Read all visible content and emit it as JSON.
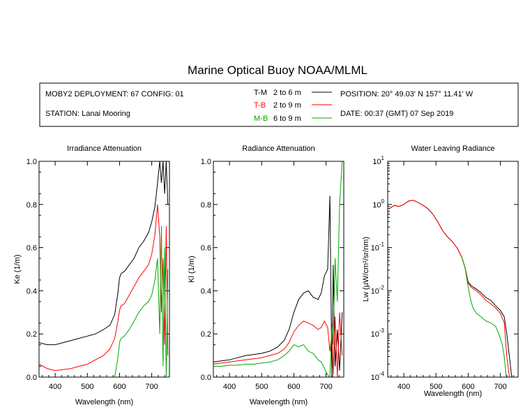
{
  "title": "Marine Optical Buoy NOAA/MLML",
  "info": {
    "deployment": "MOBY2 DEPLOYMENT: 67 CONFIG: 01",
    "station": "STATION: Lanai Mooring",
    "position": "POSITION: 20° 49.03' N   157° 11.41' W",
    "date": "DATE: 00:37 (GMT) 07 Sep 2019",
    "legend": [
      {
        "code": "T-M",
        "range": "2 to 6  m",
        "color": "#000000"
      },
      {
        "code": "T-B",
        "range": "2 to 9  m",
        "color": "#ff0000"
      },
      {
        "code": "M-B",
        "range": "6 to 9  m",
        "color": "#00aa00"
      }
    ]
  },
  "chart_data": [
    {
      "type": "line",
      "title": "Irradiance Attenuation",
      "xlabel": "Wavelength (nm)",
      "ylabel": "Ke  (1/m)",
      "xlim": [
        350,
        755
      ],
      "ylim": [
        0,
        1
      ],
      "xticks": [
        400,
        500,
        600,
        700
      ],
      "yticks": [
        0.0,
        0.2,
        0.4,
        0.6,
        0.8,
        1.0
      ],
      "ytick_labels": [
        "0.0",
        "0.2",
        "0.4",
        "0.6",
        "0.8",
        "1.0"
      ],
      "series": [
        {
          "code": "T-M",
          "color": "#000000",
          "x": [
            350,
            375,
            400,
            425,
            450,
            475,
            500,
            525,
            550,
            570,
            585,
            595,
            600,
            605,
            615,
            630,
            645,
            660,
            675,
            690,
            700,
            710,
            718,
            725,
            730,
            735,
            740,
            745,
            750
          ],
          "y": [
            0.16,
            0.15,
            0.15,
            0.16,
            0.17,
            0.18,
            0.19,
            0.2,
            0.22,
            0.24,
            0.29,
            0.39,
            0.46,
            0.48,
            0.49,
            0.52,
            0.55,
            0.6,
            0.63,
            0.67,
            0.72,
            0.79,
            0.9,
            1.0,
            0.9,
            1.0,
            0.85,
            1.0,
            0.8
          ]
        },
        {
          "code": "T-B",
          "color": "#ff0000",
          "x": [
            350,
            375,
            400,
            425,
            450,
            475,
            500,
            525,
            550,
            570,
            585,
            595,
            600,
            605,
            615,
            630,
            645,
            660,
            675,
            690,
            700,
            710,
            718,
            725,
            730,
            735,
            740,
            745,
            750
          ],
          "y": [
            0.06,
            0.04,
            0.03,
            0.035,
            0.04,
            0.05,
            0.06,
            0.08,
            0.1,
            0.13,
            0.18,
            0.26,
            0.31,
            0.33,
            0.34,
            0.38,
            0.42,
            0.46,
            0.49,
            0.52,
            0.57,
            0.66,
            0.8,
            0.65,
            0.3,
            0.55,
            0.15,
            0.7,
            0.1
          ]
        },
        {
          "code": "M-B",
          "color": "#00aa00",
          "x": [
            585,
            595,
            600,
            605,
            615,
            630,
            645,
            660,
            675,
            690,
            700,
            710,
            718,
            725,
            730,
            735,
            740,
            745,
            750
          ],
          "y": [
            0.0,
            0.09,
            0.16,
            0.18,
            0.19,
            0.22,
            0.26,
            0.3,
            0.33,
            0.35,
            0.38,
            0.45,
            0.55,
            0.2,
            0.7,
            0.05,
            0.6,
            0.0,
            0.5
          ]
        }
      ]
    },
    {
      "type": "line",
      "title": "Radiance Attenuation",
      "xlabel": "Wavelength (nm)",
      "ylabel": "Kl  (1/m)",
      "xlim": [
        350,
        755
      ],
      "ylim": [
        0,
        1
      ],
      "xticks": [
        400,
        500,
        600,
        700
      ],
      "yticks": [
        0.0,
        0.2,
        0.4,
        0.6,
        0.8,
        1.0
      ],
      "ytick_labels": [
        "0.0",
        "0.2",
        "0.4",
        "0.6",
        "0.8",
        "1.0"
      ],
      "series": [
        {
          "code": "T-M",
          "color": "#000000",
          "x": [
            350,
            375,
            400,
            425,
            450,
            475,
            500,
            525,
            550,
            570,
            585,
            600,
            615,
            630,
            645,
            660,
            675,
            685,
            695,
            705,
            712,
            718,
            722,
            728,
            735,
            742,
            750
          ],
          "y": [
            0.07,
            0.075,
            0.08,
            0.09,
            0.1,
            0.105,
            0.11,
            0.12,
            0.14,
            0.17,
            0.22,
            0.3,
            0.36,
            0.39,
            0.4,
            0.37,
            0.36,
            0.39,
            0.47,
            0.5,
            0.84,
            0.0,
            0.52,
            0.05,
            0.22,
            0.03,
            0.3
          ]
        },
        {
          "code": "T-B",
          "color": "#ff0000",
          "x": [
            350,
            375,
            400,
            425,
            450,
            475,
            500,
            525,
            550,
            570,
            585,
            600,
            615,
            630,
            645,
            660,
            675,
            685,
            695,
            705,
            712,
            718,
            722,
            728,
            735,
            742,
            750
          ],
          "y": [
            0.06,
            0.065,
            0.07,
            0.075,
            0.08,
            0.085,
            0.09,
            0.1,
            0.11,
            0.13,
            0.16,
            0.21,
            0.24,
            0.26,
            0.25,
            0.24,
            0.22,
            0.23,
            0.26,
            0.23,
            0.12,
            0.2,
            0.01,
            0.28,
            0.0,
            0.3,
            0.1
          ]
        },
        {
          "code": "M-B",
          "color": "#00aa00",
          "x": [
            350,
            375,
            400,
            425,
            450,
            475,
            500,
            525,
            550,
            570,
            585,
            600,
            615,
            630,
            645,
            660,
            675,
            685,
            695,
            705,
            712,
            718,
            722,
            728,
            735,
            742,
            750
          ],
          "y": [
            0.05,
            0.05,
            0.055,
            0.055,
            0.06,
            0.06,
            0.065,
            0.07,
            0.08,
            0.1,
            0.12,
            0.15,
            0.14,
            0.15,
            0.12,
            0.11,
            0.08,
            0.07,
            0.04,
            0.01,
            0.0,
            0.25,
            0.15,
            0.55,
            0.35,
            0.8,
            1.0
          ]
        }
      ]
    },
    {
      "type": "line",
      "title": "Water Leaving Radiance",
      "xlabel": "Wavelength (nm)",
      "ylabel": "Lw  (µW/cm²/sr/nm)",
      "xscale": "linear",
      "yscale": "log",
      "xlim": [
        350,
        755
      ],
      "ylim": [
        0.0001,
        10
      ],
      "xticks": [
        400,
        500,
        600,
        700
      ],
      "yticks": [
        0.0001,
        0.001,
        0.01,
        0.1,
        1,
        10
      ],
      "ytick_exponents": [
        "-4",
        "-3",
        "-2",
        "-1",
        "0",
        "1"
      ],
      "series": [
        {
          "code": "T-M",
          "color": "#000000",
          "x": [
            355,
            370,
            385,
            400,
            415,
            430,
            445,
            460,
            475,
            490,
            505,
            520,
            535,
            550,
            565,
            580,
            590,
            600,
            610,
            625,
            640,
            655,
            670,
            685,
            700,
            712,
            720,
            728,
            735
          ],
          "y": [
            0.8,
            0.95,
            0.9,
            1.0,
            1.2,
            1.25,
            1.1,
            0.95,
            0.8,
            0.6,
            0.4,
            0.25,
            0.18,
            0.14,
            0.1,
            0.06,
            0.035,
            0.016,
            0.013,
            0.011,
            0.009,
            0.007,
            0.006,
            0.0045,
            0.0035,
            0.0025,
            0.001,
            0.0003,
            0.0001
          ]
        },
        {
          "code": "T-B",
          "color": "#ff0000",
          "x": [
            355,
            370,
            385,
            400,
            415,
            430,
            445,
            460,
            475,
            490,
            505,
            520,
            535,
            550,
            565,
            580,
            590,
            600,
            610,
            625,
            640,
            655,
            670,
            685,
            700,
            712,
            720,
            728
          ],
          "y": [
            0.8,
            0.95,
            0.9,
            1.0,
            1.2,
            1.25,
            1.1,
            0.95,
            0.8,
            0.6,
            0.4,
            0.25,
            0.18,
            0.14,
            0.1,
            0.06,
            0.035,
            0.015,
            0.012,
            0.01,
            0.008,
            0.006,
            0.005,
            0.004,
            0.003,
            0.0018,
            0.0003,
            0.0001
          ]
        },
        {
          "code": "M-B",
          "color": "#00aa00",
          "x": [
            580,
            590,
            600,
            608,
            615,
            625,
            640,
            655,
            670,
            685,
            695,
            705,
            712,
            718
          ],
          "y": [
            0.06,
            0.035,
            0.012,
            0.006,
            0.004,
            0.003,
            0.0025,
            0.002,
            0.0018,
            0.0015,
            0.001,
            0.0006,
            0.0003,
            0.0001
          ]
        }
      ]
    }
  ]
}
